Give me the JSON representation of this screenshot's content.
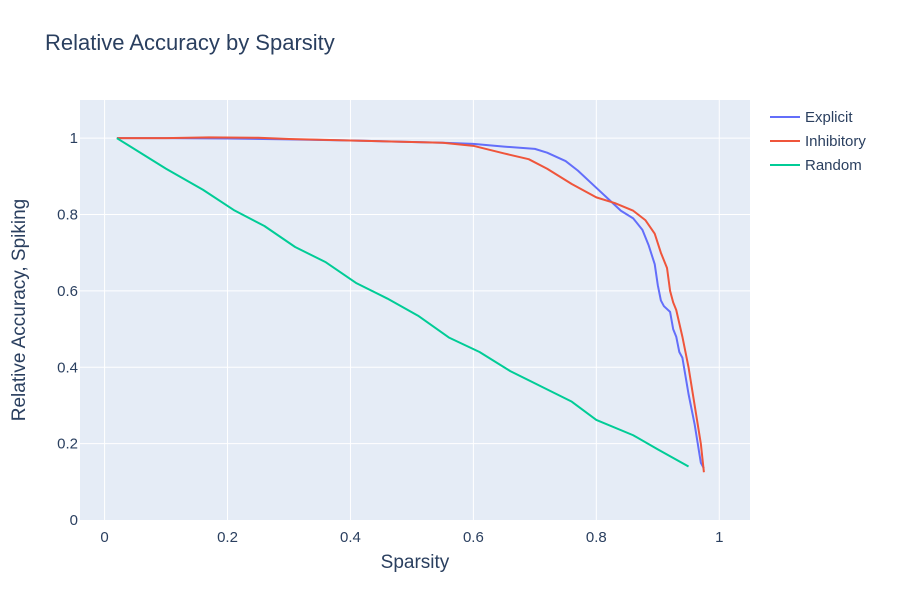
{
  "chart_data": {
    "type": "line",
    "title": "Relative Accuracy by Sparsity",
    "xlabel": "Sparsity",
    "ylabel": "Relative Accuracy, Spiking",
    "xlim": [
      -0.04,
      1.05
    ],
    "ylim": [
      0,
      1.1
    ],
    "x_ticks": [
      0,
      0.2,
      0.4,
      0.6,
      0.8,
      1
    ],
    "x_tick_labels": [
      "0",
      "0.2",
      "0.4",
      "0.6",
      "0.8",
      "1"
    ],
    "y_ticks": [
      0,
      0.2,
      0.4,
      0.6,
      0.8,
      1
    ],
    "y_tick_labels": [
      "0",
      "0.2",
      "0.4",
      "0.6",
      "0.8",
      "1"
    ],
    "grid": true,
    "legend_position": "top-right, outside plot",
    "plot_background": "#E5ECF6",
    "series": [
      {
        "name": "Explicit",
        "color": "#636EFA",
        "x": [
          0.02,
          0.1,
          0.2,
          0.3,
          0.4,
          0.5,
          0.55,
          0.6,
          0.65,
          0.7,
          0.72,
          0.75,
          0.77,
          0.8,
          0.82,
          0.84,
          0.86,
          0.875,
          0.885,
          0.895,
          0.9,
          0.905,
          0.91,
          0.92,
          0.925,
          0.93,
          0.935,
          0.94,
          0.95,
          0.96,
          0.965,
          0.97,
          0.975
        ],
        "y": [
          1.0,
          1.0,
          0.999,
          0.997,
          0.994,
          0.99,
          0.988,
          0.985,
          0.978,
          0.972,
          0.962,
          0.94,
          0.915,
          0.87,
          0.84,
          0.81,
          0.79,
          0.76,
          0.72,
          0.67,
          0.615,
          0.575,
          0.56,
          0.545,
          0.5,
          0.48,
          0.44,
          0.425,
          0.33,
          0.25,
          0.2,
          0.15,
          0.135
        ]
      },
      {
        "name": "Inhibitory",
        "color": "#EF553B",
        "x": [
          0.02,
          0.1,
          0.17,
          0.25,
          0.3,
          0.4,
          0.5,
          0.55,
          0.6,
          0.65,
          0.69,
          0.72,
          0.76,
          0.8,
          0.83,
          0.86,
          0.88,
          0.895,
          0.905,
          0.915,
          0.92,
          0.925,
          0.93,
          0.94,
          0.95,
          0.96,
          0.97,
          0.975
        ],
        "y": [
          1.0,
          1.0,
          1.002,
          1.001,
          0.998,
          0.994,
          0.99,
          0.988,
          0.98,
          0.96,
          0.945,
          0.92,
          0.88,
          0.845,
          0.83,
          0.81,
          0.785,
          0.75,
          0.7,
          0.66,
          0.6,
          0.57,
          0.55,
          0.48,
          0.4,
          0.3,
          0.2,
          0.125
        ]
      },
      {
        "name": "Random",
        "color": "#00CC96",
        "x": [
          0.02,
          0.1,
          0.16,
          0.21,
          0.26,
          0.31,
          0.36,
          0.41,
          0.46,
          0.51,
          0.56,
          0.61,
          0.66,
          0.71,
          0.76,
          0.8,
          0.86,
          0.9,
          0.95
        ],
        "y": [
          1.0,
          0.92,
          0.865,
          0.812,
          0.77,
          0.715,
          0.675,
          0.62,
          0.58,
          0.535,
          0.478,
          0.44,
          0.39,
          0.35,
          0.31,
          0.262,
          0.222,
          0.185,
          0.14
        ]
      }
    ]
  }
}
